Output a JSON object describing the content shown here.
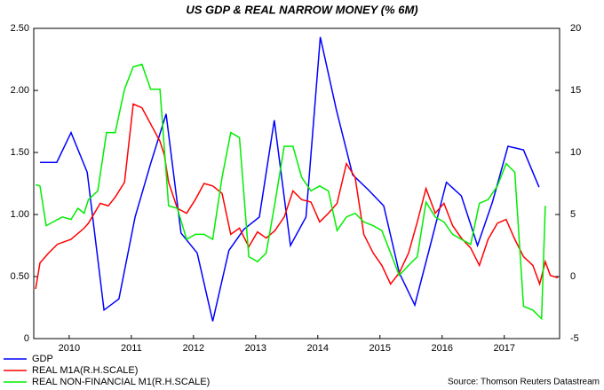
{
  "chart_data": {
    "type": "line",
    "title": "US GDP & REAL NARROW MONEY (% 6M)",
    "source": "Source: Thomson Reuters Datastream",
    "xlim": [
      2009.93,
      2018.39
    ],
    "xticks": [
      {
        "value": 2010.5,
        "label": "2010"
      },
      {
        "value": 2011.5,
        "label": "2011"
      },
      {
        "value": 2012.5,
        "label": "2012"
      },
      {
        "value": 2013.5,
        "label": "2013"
      },
      {
        "value": 2014.5,
        "label": "2014"
      },
      {
        "value": 2015.5,
        "label": "2015"
      },
      {
        "value": 2016.5,
        "label": "2016"
      },
      {
        "value": 2017.5,
        "label": "2017"
      }
    ],
    "ylim": [
      0,
      2.5
    ],
    "yticks": [
      0,
      {
        "value": 0.5,
        "label": "0.50"
      },
      {
        "value": 1,
        "label": "1.00"
      },
      {
        "value": 1.5,
        "label": "1.50"
      },
      {
        "value": 2,
        "label": "2.00"
      },
      {
        "value": 2.5,
        "label": "2.50"
      }
    ],
    "y2lim": [
      -5,
      20
    ],
    "y2ticks": [
      -5,
      0,
      5,
      10,
      15,
      20
    ],
    "series": [
      {
        "name": "GDP",
        "color": "#0000ff",
        "x": [
          2010.03,
          2010.3,
          2010.53,
          2010.79,
          2011.06,
          2011.3,
          2011.56,
          2011.81,
          2012.06,
          2012.3,
          2012.56,
          2012.81,
          2013.07,
          2013.31,
          2013.56,
          2013.8,
          2014.06,
          2014.31,
          2014.54,
          2014.8,
          2015.06,
          2015.31,
          2015.56,
          2015.81,
          2016.06,
          2016.31,
          2016.57,
          2016.81,
          2017.07,
          2017.31,
          2017.56,
          2017.81,
          2018.06
        ],
        "values": [
          1.42,
          1.42,
          1.66,
          1.34,
          0.23,
          0.32,
          0.98,
          1.41,
          1.81,
          0.85,
          0.69,
          0.14,
          0.71,
          0.88,
          0.98,
          1.76,
          0.75,
          0.98,
          2.43,
          1.84,
          1.32,
          1.2,
          1.07,
          0.53,
          0.27,
          0.75,
          1.26,
          1.15,
          0.75,
          1.1,
          1.55,
          1.52,
          1.22
        ]
      },
      {
        "name": "REAL M1A(R.H.SCALE)",
        "color": "#ff0000",
        "axis": "y2",
        "x": [
          2009.96,
          2010.03,
          2010.17,
          2010.31,
          2010.53,
          2010.74,
          2010.81,
          2011.0,
          2011.13,
          2011.24,
          2011.39,
          2011.53,
          2011.67,
          2011.81,
          2011.96,
          2012.03,
          2012.1,
          2012.24,
          2012.39,
          2012.53,
          2012.67,
          2012.81,
          2012.96,
          2013.1,
          2013.24,
          2013.39,
          2013.53,
          2013.67,
          2013.81,
          2013.96,
          2014.1,
          2014.24,
          2014.39,
          2014.53,
          2014.67,
          2014.81,
          2014.96,
          2015.1,
          2015.24,
          2015.39,
          2015.53,
          2015.67,
          2015.81,
          2015.96,
          2016.1,
          2016.24,
          2016.39,
          2016.53,
          2016.67,
          2016.81,
          2016.96,
          2017.1,
          2017.24,
          2017.39,
          2017.53,
          2017.67,
          2017.81,
          2017.96,
          2018.07,
          2018.16,
          2018.24,
          2018.36
        ],
        "values": [
          -1,
          1.1,
          1.9,
          2.6,
          3.0,
          3.9,
          4.3,
          5.9,
          5.7,
          6.4,
          7.6,
          13.9,
          13.6,
          12.3,
          10.9,
          9.8,
          7.6,
          5.5,
          5.1,
          6.2,
          7.5,
          7.3,
          6.7,
          3.4,
          3.9,
          2.4,
          3.6,
          3.1,
          3.7,
          4.8,
          6.9,
          6.2,
          6.0,
          4.4,
          5.1,
          5.9,
          9.1,
          8.0,
          3.4,
          1.9,
          0.9,
          -0.6,
          0.3,
          1.9,
          4.4,
          7.1,
          5.1,
          5.9,
          4.1,
          3.1,
          2.3,
          0.9,
          3.0,
          4.3,
          4.6,
          3.0,
          1.6,
          0.9,
          -0.6,
          1.2,
          0.1,
          -0.1
        ]
      },
      {
        "name": "REAL NON-FINANCIAL M1(R.H.SCALE)",
        "color": "#00ee00",
        "axis": "y2",
        "x": [
          2009.96,
          2010.03,
          2010.13,
          2010.24,
          2010.39,
          2010.53,
          2010.64,
          2010.74,
          2010.81,
          2010.96,
          2011.1,
          2011.24,
          2011.39,
          2011.53,
          2011.67,
          2011.81,
          2011.96,
          2012.1,
          2012.24,
          2012.39,
          2012.53,
          2012.67,
          2012.81,
          2012.96,
          2013.1,
          2013.24,
          2013.39,
          2013.53,
          2013.67,
          2013.81,
          2013.96,
          2014.1,
          2014.24,
          2014.39,
          2014.53,
          2014.67,
          2014.81,
          2014.96,
          2015.1,
          2015.24,
          2015.39,
          2015.53,
          2015.67,
          2015.81,
          2015.96,
          2016.1,
          2016.24,
          2016.39,
          2016.53,
          2016.67,
          2016.81,
          2016.96,
          2017.1,
          2017.24,
          2017.39,
          2017.53,
          2017.67,
          2017.81,
          2017.96,
          2018.1,
          2018.16
        ],
        "values": [
          7.4,
          7.3,
          4.1,
          4.4,
          4.8,
          4.6,
          5.5,
          5.1,
          6.2,
          6.9,
          11.6,
          11.6,
          15.1,
          16.9,
          17.1,
          15.1,
          15.1,
          5.7,
          5.5,
          3.0,
          3.4,
          3.4,
          3.0,
          8.0,
          11.6,
          11.2,
          1.6,
          1.2,
          1.9,
          5.9,
          10.5,
          10.5,
          8.0,
          6.9,
          7.3,
          6.9,
          3.7,
          4.8,
          5.1,
          4.4,
          4.1,
          3.7,
          1.9,
          0.1,
          0.9,
          1.6,
          6.0,
          4.8,
          4.4,
          3.4,
          3.0,
          2.6,
          5.9,
          6.2,
          7.3,
          9.1,
          8.4,
          -2.4,
          -2.7,
          -3.4,
          5.7
        ]
      }
    ]
  }
}
